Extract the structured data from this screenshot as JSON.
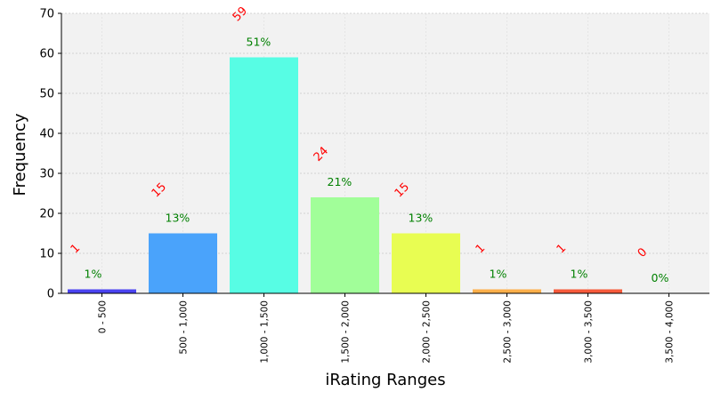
{
  "chart_data": {
    "type": "bar",
    "xlabel": "iRating Ranges",
    "ylabel": "Frequency",
    "ylim": [
      0,
      70
    ],
    "yticks": [
      0,
      10,
      20,
      30,
      40,
      50,
      60,
      70
    ],
    "grid": true,
    "legend": "none",
    "categories": [
      "0 - 500",
      "500 - 1,000",
      "1,000 - 1,500",
      "1,500 - 2,000",
      "2,000 - 2,500",
      "2,500 - 3,000",
      "3,000 - 3,500",
      "3,500 - 4,000"
    ],
    "values": [
      1,
      15,
      59,
      24,
      15,
      1,
      1,
      0
    ],
    "count_labels": [
      "1",
      "15",
      "59",
      "24",
      "15",
      "1",
      "1",
      "0"
    ],
    "percent_labels": [
      "1%",
      "13%",
      "51%",
      "21%",
      "13%",
      "1%",
      "1%",
      "0%"
    ],
    "bar_colors": [
      "#4a43f0",
      "#4aa3fb",
      "#57fde4",
      "#a1fe99",
      "#e8fd52",
      "#fdaf4a",
      "#f65a3b",
      "#8b0000"
    ],
    "plot_background": "#f2f2f2",
    "count_label_color": "#ff0000",
    "percent_label_color": "#008000"
  }
}
